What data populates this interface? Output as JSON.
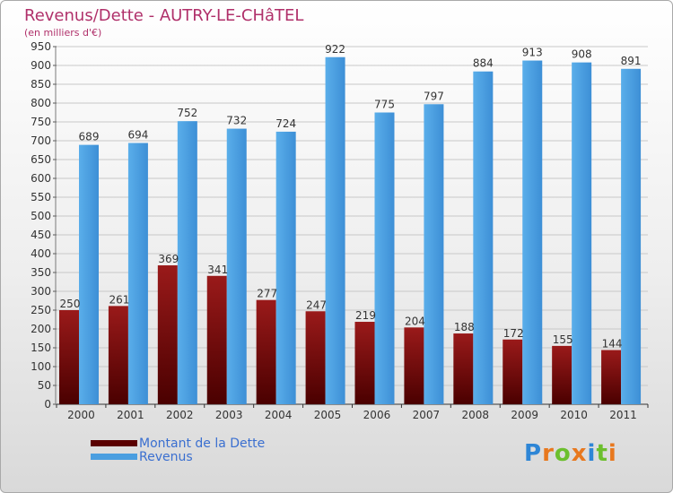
{
  "header": {
    "title": "Revenus/Dette - AUTRY-LE-CHâTEL",
    "subtitle": "(en milliers d'€)"
  },
  "chart_data": {
    "type": "bar",
    "title": "Revenus/Dette - AUTRY-LE-CHâTEL",
    "subtitle": "(en milliers d'€)",
    "categories": [
      "2000",
      "2001",
      "2002",
      "2003",
      "2004",
      "2005",
      "2006",
      "2007",
      "2008",
      "2009",
      "2010",
      "2011"
    ],
    "series": [
      {
        "name": "Montant de la Dette",
        "color": "#8b0d0d",
        "values": [
          250,
          261,
          369,
          341,
          277,
          247,
          219,
          204,
          188,
          172,
          155,
          144
        ]
      },
      {
        "name": "Revenus",
        "color": "#4a9ee0",
        "values": [
          689,
          694,
          752,
          732,
          724,
          922,
          775,
          797,
          884,
          913,
          908,
          891
        ]
      }
    ],
    "ylim": [
      0,
      950
    ],
    "ytick_step": 50,
    "grid": true,
    "legend": "bottom-left"
  },
  "legend": {
    "items": [
      {
        "label": "Montant de la Dette",
        "color": "#5a0000"
      },
      {
        "label": "Revenus",
        "color": "#4a9ee0"
      }
    ]
  },
  "brand": {
    "letters": [
      "P",
      "r",
      "o",
      "x",
      "i",
      "t",
      "i"
    ],
    "colors": [
      "#2e86d6",
      "#e8781e",
      "#6cbf2e",
      "#e8781e",
      "#2e86d6",
      "#6cbf2e",
      "#e8781e"
    ]
  }
}
